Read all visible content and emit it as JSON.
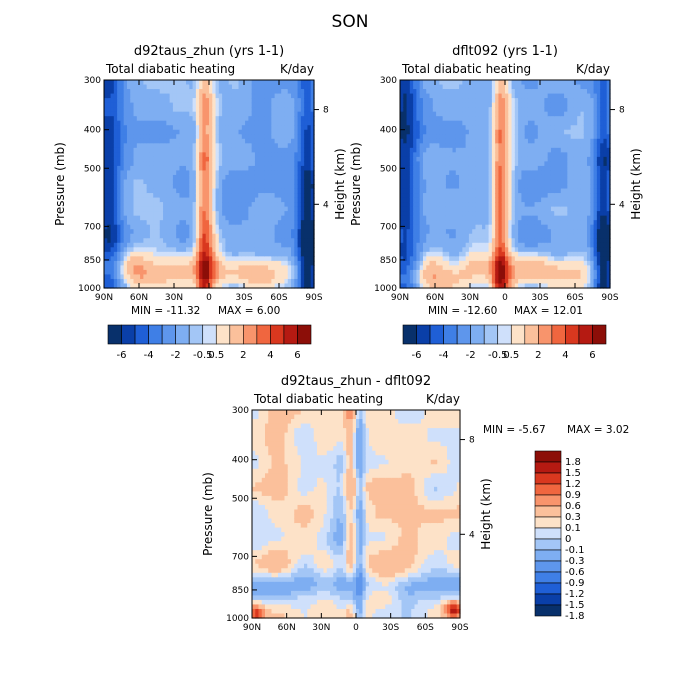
{
  "figure": {
    "title": "SON"
  },
  "colorbar_palette": [
    "#08306b",
    "#0a3fa8",
    "#1f5fd6",
    "#3f7fe6",
    "#5e96ec",
    "#7eaef2",
    "#a3c6f6",
    "#cfe0fb",
    "#fde2c8",
    "#fbc09b",
    "#f8946c",
    "#f0663f",
    "#d9381f",
    "#b51a12",
    "#8c0e08"
  ],
  "chart_data": [
    {
      "type": "heatmap",
      "title": "d92taus_zhun (yrs 1-1)",
      "subtitle_left": "Total diabatic heating",
      "subtitle_right": "K/day",
      "xlabel": "",
      "ylabel": "Pressure (mb)",
      "ylabel_right": "Height (km)",
      "x_ticks": [
        "90N",
        "60N",
        "30N",
        "0",
        "30S",
        "60S",
        "90S"
      ],
      "y_ticks": [
        "300",
        "400",
        "500",
        "700",
        "850",
        "1000"
      ],
      "y_ticks_right": [
        "8",
        "4"
      ],
      "min_label": "MIN = -11.32",
      "max_label": "MAX = 6.00",
      "colorbar_ticks": [
        "-6",
        "-4",
        "-2",
        "-0.5",
        "0.5",
        "2",
        "4",
        "6"
      ]
    },
    {
      "type": "heatmap",
      "title": "dflt092 (yrs 1-1)",
      "subtitle_left": "Total diabatic heating",
      "subtitle_right": "K/day",
      "xlabel": "",
      "ylabel": "Pressure (mb)",
      "ylabel_right": "Height (km)",
      "x_ticks": [
        "90N",
        "60N",
        "30N",
        "0",
        "30S",
        "60S",
        "90S"
      ],
      "y_ticks": [
        "300",
        "400",
        "500",
        "700",
        "850",
        "1000"
      ],
      "y_ticks_right": [
        "8",
        "4"
      ],
      "min_label": "MIN = -12.60",
      "max_label": "MAX = 12.01",
      "colorbar_ticks": [
        "-6",
        "-4",
        "-2",
        "-0.5",
        "0.5",
        "2",
        "4",
        "6"
      ]
    },
    {
      "type": "heatmap",
      "title": "d92taus_zhun - dflt092",
      "subtitle_left": "Total diabatic heating",
      "subtitle_right": "K/day",
      "xlabel": "",
      "ylabel": "Pressure (mb)",
      "ylabel_right": "Height (km)",
      "x_ticks": [
        "90N",
        "60N",
        "30N",
        "0",
        "30S",
        "60S",
        "90S"
      ],
      "y_ticks": [
        "300",
        "400",
        "500",
        "700",
        "850",
        "1000"
      ],
      "y_ticks_right": [
        "8",
        "4"
      ],
      "min_label": "MIN = -5.67",
      "max_label": "MAX = 3.02",
      "colorbar_ticks": [
        "1.8",
        "1.5",
        "1.2",
        "0.9",
        "0.6",
        "0.3",
        "0.1",
        "0",
        "-0.1",
        "-0.3",
        "-0.6",
        "-0.9",
        "-1.2",
        "-1.5",
        "-1.8"
      ]
    }
  ]
}
